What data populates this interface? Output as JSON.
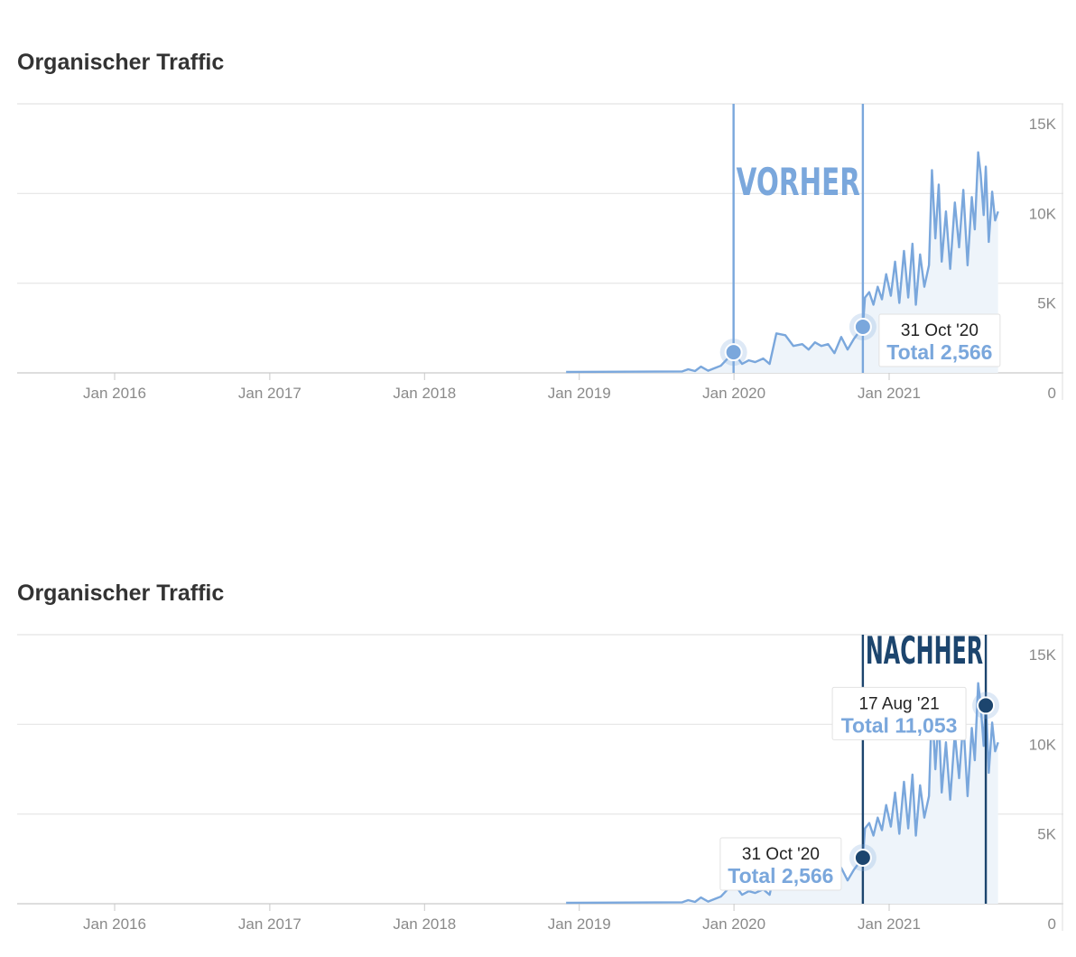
{
  "colors": {
    "line": "#7aa7dc",
    "area": "#eef4fa",
    "grid": "#e4e4e4",
    "axis_text": "#8a8a8a",
    "before": "#7aa7dc",
    "after": "#1c456e"
  },
  "panels": [
    {
      "title": "Organischer Traffic",
      "marker": {
        "label": "VORHER",
        "start": "2019-12-31",
        "end": "2020-10-31"
      },
      "tooltips": [
        {
          "date": "31 Oct '20",
          "total_label": "Total 2,566",
          "x": "2020-10-31",
          "value": 2566
        }
      ],
      "points": [
        {
          "x": "2019-12-31",
          "value": 1150
        },
        {
          "x": "2020-10-31",
          "value": 2566
        }
      ]
    },
    {
      "title": "Organischer Traffic",
      "marker": {
        "label": "NACHHER",
        "start": "2020-10-31",
        "end": "2021-08-17"
      },
      "tooltips": [
        {
          "date": "31 Oct '20",
          "total_label": "Total 2,566",
          "x": "2020-10-31",
          "value": 2566
        },
        {
          "date": "17 Aug '21",
          "total_label": "Total 11,053",
          "x": "2021-08-17",
          "value": 11053
        }
      ],
      "points": [
        {
          "x": "2020-10-31",
          "value": 2566
        },
        {
          "x": "2021-08-17",
          "value": 11053
        }
      ]
    }
  ],
  "chart_data": {
    "type": "area",
    "ylim": [
      0,
      15000
    ],
    "yticks": [
      {
        "value": 15000,
        "label": "15K"
      },
      {
        "value": 10000,
        "label": "10K"
      },
      {
        "value": 5000,
        "label": "5K"
      },
      {
        "value": 0,
        "label": "0"
      }
    ],
    "xticks": [
      {
        "date": "2016-01-01",
        "label": "Jan 2016"
      },
      {
        "date": "2017-01-01",
        "label": "Jan 2017"
      },
      {
        "date": "2018-01-01",
        "label": "Jan 2018"
      },
      {
        "date": "2019-01-01",
        "label": "Jan 2019"
      },
      {
        "date": "2020-01-01",
        "label": "Jan 2020"
      },
      {
        "date": "2021-01-01",
        "label": "Jan 2021"
      }
    ],
    "series": [
      {
        "x": [
          "2018-12-01",
          "2019-09-01",
          "2019-09-15",
          "2019-10-01",
          "2019-10-15",
          "2019-11-01",
          "2019-11-15",
          "2019-12-01",
          "2019-12-31",
          "2020-01-20",
          "2020-02-05",
          "2020-02-20",
          "2020-03-10",
          "2020-03-25",
          "2020-04-10",
          "2020-05-01",
          "2020-05-20",
          "2020-06-10",
          "2020-06-25",
          "2020-07-10",
          "2020-07-25",
          "2020-08-10",
          "2020-08-25",
          "2020-09-10",
          "2020-09-25",
          "2020-10-10",
          "2020-10-31",
          "2020-11-05",
          "2020-11-15",
          "2020-11-25",
          "2020-12-05",
          "2020-12-15",
          "2020-12-25",
          "2021-01-05",
          "2021-01-15",
          "2021-01-25",
          "2021-02-05",
          "2021-02-15",
          "2021-02-25",
          "2021-03-05",
          "2021-03-15",
          "2021-03-25",
          "2021-04-05",
          "2021-04-12",
          "2021-04-20",
          "2021-04-28",
          "2021-05-05",
          "2021-05-15",
          "2021-05-25",
          "2021-06-05",
          "2021-06-15",
          "2021-06-25",
          "2021-07-05",
          "2021-07-15",
          "2021-07-22",
          "2021-07-30",
          "2021-08-05",
          "2021-08-12",
          "2021-08-17",
          "2021-08-24",
          "2021-09-01",
          "2021-09-08",
          "2021-09-15"
        ],
        "values": [
          50,
          80,
          200,
          100,
          350,
          120,
          250,
          400,
          1150,
          500,
          700,
          600,
          800,
          500,
          2200,
          2100,
          1500,
          1600,
          1300,
          1700,
          1500,
          1600,
          1100,
          2000,
          1300,
          1900,
          2566,
          4200,
          4500,
          3800,
          4800,
          4100,
          5500,
          4300,
          6200,
          3900,
          6800,
          4200,
          7200,
          3800,
          6600,
          4800,
          6000,
          11300,
          7500,
          10500,
          6200,
          9000,
          5800,
          9500,
          7000,
          10200,
          6000,
          9800,
          8000,
          12300,
          11053,
          8800,
          11500,
          7300,
          10100,
          8500,
          9000
        ]
      }
    ]
  }
}
